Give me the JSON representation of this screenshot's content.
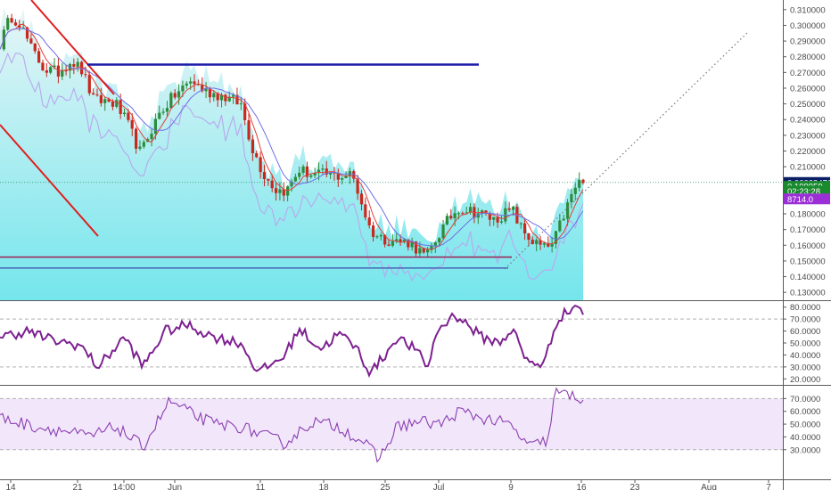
{
  "chart_data": {
    "type": "candlestick",
    "panes": [
      {
        "name": "price",
        "y_ticks": [
          "0.310000",
          "0.300000",
          "0.290000",
          "0.280000",
          "0.270000",
          "0.260000",
          "0.250000",
          "0.240000",
          "0.230000",
          "0.220000",
          "0.210000",
          "0.200000",
          "0.190000",
          "0.180000",
          "0.170000",
          "0.160000",
          "0.150000",
          "0.140000",
          "0.130000"
        ],
        "ylim": [
          0.125,
          0.315
        ],
        "price_tags": [
          {
            "label": "0.00003476",
            "value": 0.2,
            "bg": "#0b1f66",
            "fg": "#ffffff"
          },
          {
            "label": "0.199959",
            "value": 0.1975,
            "bg": "#1a8a2e",
            "fg": "#ffffff"
          },
          {
            "label": "02:23:28",
            "value": 0.1945,
            "bg": "#1a8a2e",
            "fg": "#ffffff"
          },
          {
            "label": "8714.0",
            "value": 0.1895,
            "bg": "#9b2fd6",
            "fg": "#ffffff"
          }
        ],
        "drawings": {
          "resistance_line_value": 0.275,
          "support_red_value": 0.1525,
          "support_blue_value": 0.1455,
          "dotted_level_value": 0.2
        }
      },
      {
        "name": "RSI",
        "y_ticks": [
          "80.0000",
          "70.0000",
          "60.0000",
          "50.0000",
          "40.0000",
          "30.0000",
          "20.0000"
        ],
        "ylim": [
          15,
          85
        ],
        "bands": [
          70,
          30
        ]
      },
      {
        "name": "Stoch RSI",
        "y_ticks": [
          "70.0000",
          "60.0000",
          "50.0000",
          "40.0000",
          "30.0000"
        ],
        "ylim": [
          18,
          80
        ],
        "bands": [
          70,
          30
        ]
      }
    ],
    "x_ticks": [
      "14",
      "21",
      "14:00",
      "Jun",
      "11",
      "18",
      "25",
      "Jul",
      "9",
      "16",
      "23",
      "Aug",
      "7"
    ],
    "colors": {
      "up": "#2e8b3a",
      "down": "#c8281e",
      "ma_red": "#e0403a",
      "ma_blue": "#6f6fe6",
      "area_top": "#d8f0f4",
      "area_bottom": "#7ce8ee",
      "rsi": "#7d2190",
      "stoch": "#8a3fb0",
      "trend_red": "#e01e1e",
      "hline_blue": "#1a1aa8"
    }
  }
}
